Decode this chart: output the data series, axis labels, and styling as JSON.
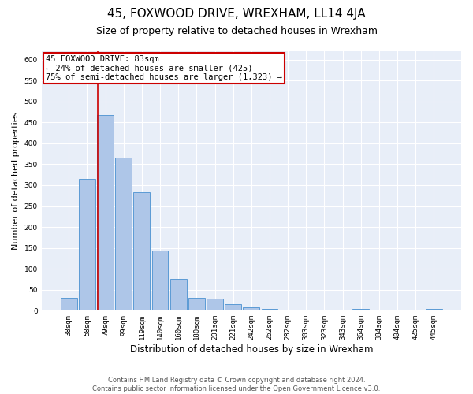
{
  "title": "45, FOXWOOD DRIVE, WREXHAM, LL14 4JA",
  "subtitle": "Size of property relative to detached houses in Wrexham",
  "xlabel": "Distribution of detached houses by size in Wrexham",
  "ylabel": "Number of detached properties",
  "categories": [
    "38sqm",
    "58sqm",
    "79sqm",
    "99sqm",
    "119sqm",
    "140sqm",
    "160sqm",
    "180sqm",
    "201sqm",
    "221sqm",
    "242sqm",
    "262sqm",
    "282sqm",
    "303sqm",
    "323sqm",
    "343sqm",
    "364sqm",
    "384sqm",
    "404sqm",
    "425sqm",
    "445sqm"
  ],
  "values": [
    30,
    315,
    467,
    365,
    283,
    143,
    75,
    30,
    28,
    15,
    8,
    5,
    3,
    3,
    2,
    2,
    5,
    2,
    2,
    2,
    5
  ],
  "bar_color": "#aec6e8",
  "bar_edge_color": "#5b9bd5",
  "bg_color": "#e8eef8",
  "annotation_box_text": "45 FOXWOOD DRIVE: 83sqm\n← 24% of detached houses are smaller (425)\n75% of semi-detached houses are larger (1,323) →",
  "annotation_box_color": "#cc0000",
  "vline_color": "#cc0000",
  "ylim": [
    0,
    620
  ],
  "yticks": [
    0,
    50,
    100,
    150,
    200,
    250,
    300,
    350,
    400,
    450,
    500,
    550,
    600
  ],
  "footer_line1": "Contains HM Land Registry data © Crown copyright and database right 2024.",
  "footer_line2": "Contains public sector information licensed under the Open Government Licence v3.0.",
  "title_fontsize": 11,
  "subtitle_fontsize": 9,
  "annotation_fontsize": 7.5,
  "tick_fontsize": 6.5,
  "ylabel_fontsize": 8,
  "xlabel_fontsize": 8.5,
  "footer_fontsize": 6
}
